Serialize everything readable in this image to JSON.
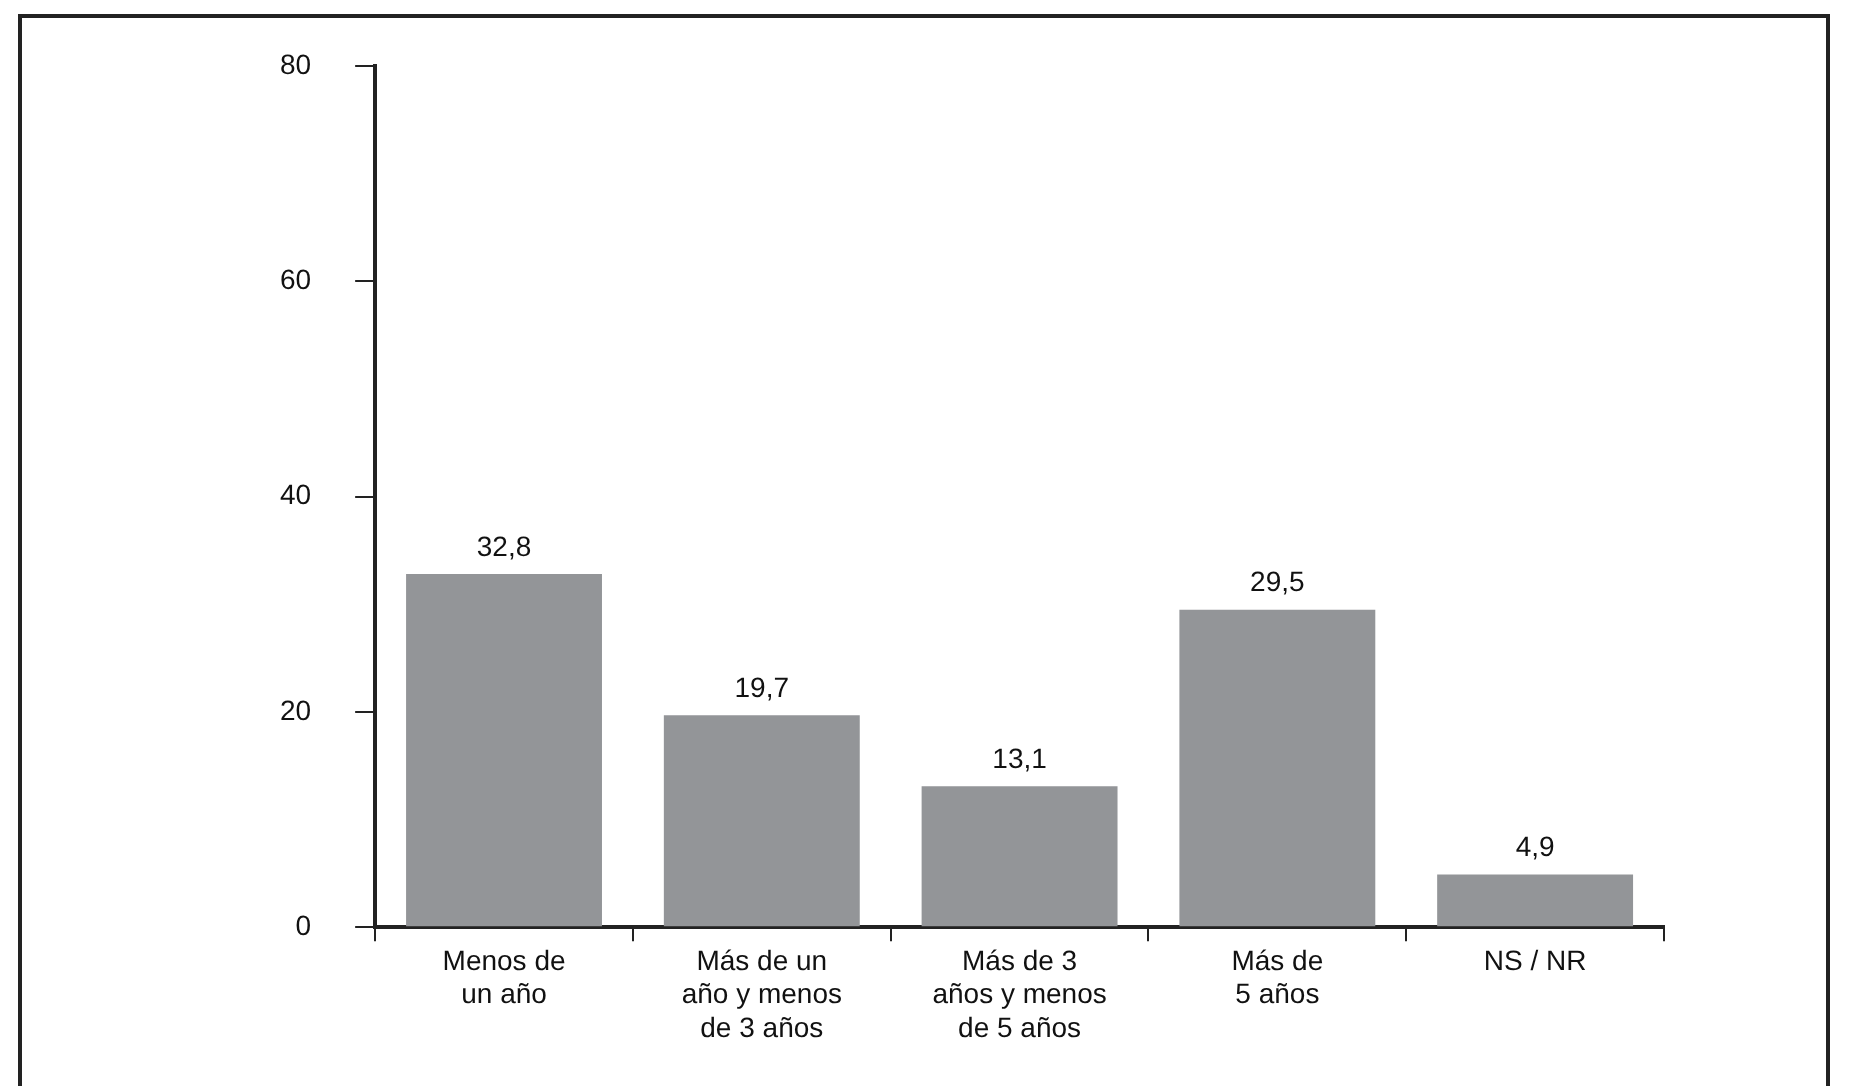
{
  "chart_data": {
    "type": "bar",
    "categories": [
      "Menos de\nun año",
      "Más de un\naño y menos\nde 3 años",
      "Más de 3\naños y menos\nde 5 años",
      "Más de\n5 años",
      "NS / NR"
    ],
    "values": [
      32.8,
      19.7,
      13.1,
      29.5,
      4.9
    ],
    "color": "#939598",
    "ylim": [
      0,
      80
    ],
    "yticks": [
      0,
      20,
      40,
      60,
      80
    ],
    "value_labels": [
      "32,8",
      "19,7",
      "13,1",
      "29,5",
      "4,9"
    ],
    "grid": false,
    "legend": false
  }
}
